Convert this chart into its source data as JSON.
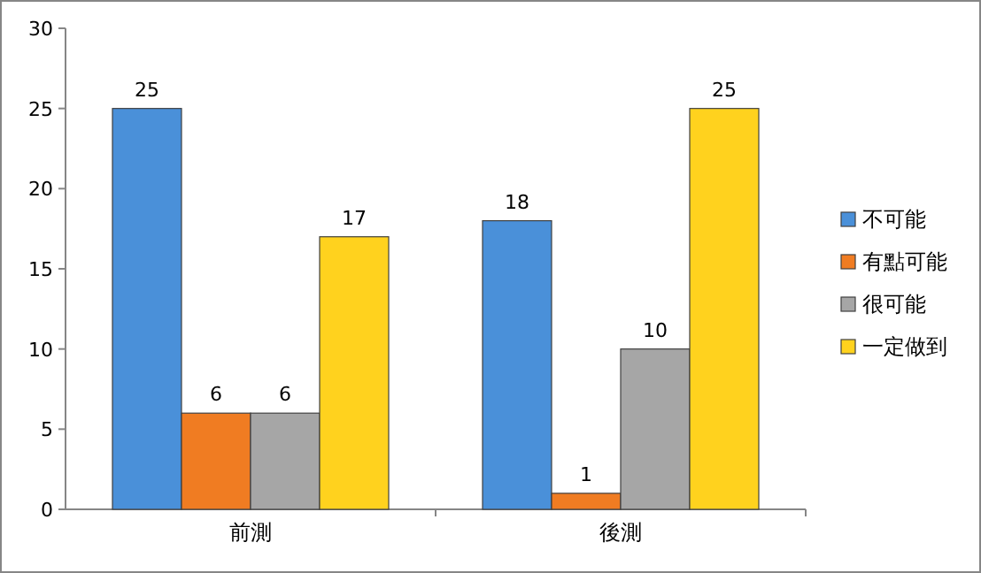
{
  "chart_data": {
    "type": "bar",
    "categories": [
      "前測",
      "後測"
    ],
    "series": [
      {
        "name": "不可能",
        "color": "#4a90d9",
        "values": [
          25,
          18
        ]
      },
      {
        "name": "有點可能",
        "color": "#f07c22",
        "values": [
          6,
          1
        ]
      },
      {
        "name": "很可能",
        "color": "#a6a6a6",
        "values": [
          6,
          10
        ]
      },
      {
        "name": "一定做到",
        "color": "#ffd21e",
        "values": [
          17,
          25
        ]
      }
    ],
    "ylim": [
      0,
      30
    ],
    "yticks": [
      0,
      5,
      10,
      15,
      20,
      25,
      30
    ],
    "legend": "right",
    "data_labels": true
  }
}
